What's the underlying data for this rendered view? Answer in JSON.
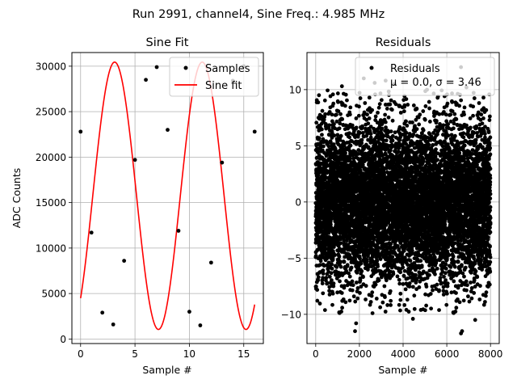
{
  "suptitle": "Run 2991, channel4, Sine Freq.: 4.985 MHz",
  "chart_data": [
    {
      "type": "line",
      "title": "Sine Fit",
      "xlabel": "Sample #",
      "ylabel": "ADC Counts",
      "xlim": [
        -0.8,
        16.8
      ],
      "ylim": [
        -500,
        31500
      ],
      "xticks": [
        0,
        5,
        10,
        15
      ],
      "yticks": [
        0,
        5000,
        10000,
        15000,
        20000,
        25000,
        30000
      ],
      "grid": true,
      "legend_position": "top-right",
      "samples": {
        "name": "Samples",
        "color": "#000000",
        "x": [
          0,
          1,
          2,
          3,
          4,
          5,
          6,
          7,
          8,
          9,
          10,
          11,
          12,
          13,
          14,
          15,
          16
        ],
        "y": [
          22800,
          11700,
          2900,
          1600,
          8600,
          19700,
          28500,
          29900,
          23000,
          11900,
          3000,
          1500,
          8400,
          19400,
          28400,
          30000,
          22800
        ]
      },
      "fit": {
        "name": "Sine fit",
        "color": "#ff0000",
        "offset": 15750,
        "amplitude": 14700,
        "period": 8.05,
        "phase_deg": 140,
        "x_range": [
          0,
          16
        ]
      }
    },
    {
      "type": "scatter",
      "title": "Residuals",
      "xlabel": "Sample #",
      "ylabel": "",
      "xlim": [
        -400,
        8400
      ],
      "ylim": [
        -12.6,
        13.3
      ],
      "xticks": [
        0,
        2000,
        4000,
        6000,
        8000
      ],
      "yticks": [
        -10,
        -5,
        0,
        5,
        10
      ],
      "grid": true,
      "legend_position": "top-right",
      "series": {
        "name": "Residuals",
        "color": "#000000",
        "n_points": 8000,
        "mean": 0.0,
        "sigma": 3.46
      },
      "legend_label_line1": "Residuals",
      "legend_label_line2": "μ = 0.0, σ = 3.46",
      "outliers": [
        [
          2200,
          11.0
        ],
        [
          6650,
          12.0
        ],
        [
          1800,
          -11.5
        ],
        [
          1850,
          -10.8
        ],
        [
          6700,
          -11.5
        ],
        [
          6650,
          -11.7
        ],
        [
          4450,
          -10.4
        ],
        [
          2700,
          10.6
        ],
        [
          3200,
          10.8
        ],
        [
          1200,
          10.3
        ],
        [
          6900,
          10.2
        ],
        [
          4150,
          -9.6
        ],
        [
          2600,
          -9.9
        ],
        [
          3600,
          10.5
        ],
        [
          7300,
          -10.5
        ],
        [
          150,
          9.5
        ]
      ]
    }
  ]
}
